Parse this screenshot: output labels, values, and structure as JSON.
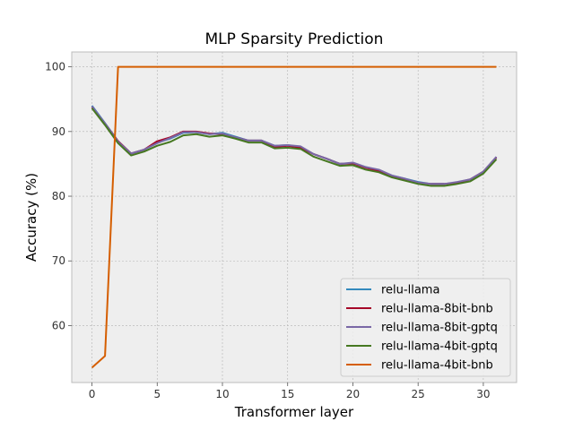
{
  "chart_data": {
    "type": "line",
    "title": "MLP Sparsity Prediction",
    "xlabel": "Transformer layer",
    "ylabel": "Accuracy (%)",
    "xlim": [
      -1.55,
      32.55
    ],
    "ylim": [
      51.2,
      102.3
    ],
    "xticks": [
      0,
      5,
      10,
      15,
      20,
      25,
      30
    ],
    "yticks": [
      60,
      70,
      80,
      90,
      100
    ],
    "grid": true,
    "legend_position": "lower-right",
    "x": [
      0,
      1,
      2,
      3,
      4,
      5,
      6,
      7,
      8,
      9,
      10,
      11,
      12,
      13,
      14,
      15,
      16,
      17,
      18,
      19,
      20,
      21,
      22,
      23,
      24,
      25,
      26,
      27,
      28,
      29,
      30,
      31
    ],
    "series": [
      {
        "name": "relu-llama",
        "color": "#348ABD",
        "values": [
          94.0,
          91.3,
          88.5,
          86.6,
          87.2,
          88.3,
          88.9,
          89.8,
          89.9,
          89.6,
          89.8,
          89.2,
          88.6,
          88.6,
          87.8,
          87.9,
          87.6,
          86.5,
          85.8,
          85.0,
          85.1,
          84.5,
          84.0,
          83.2,
          82.7,
          82.2,
          81.9,
          81.9,
          82.1,
          82.6,
          83.8,
          86.0
        ]
      },
      {
        "name": "relu-llama-8bit-bnb",
        "color": "#A60628",
        "values": [
          93.8,
          91.2,
          88.5,
          86.6,
          87.2,
          88.5,
          89.1,
          90.0,
          90.0,
          89.7,
          89.6,
          89.1,
          88.6,
          88.6,
          87.6,
          87.8,
          87.5,
          86.5,
          85.8,
          85.0,
          85.1,
          84.4,
          83.9,
          83.1,
          82.6,
          82.1,
          81.9,
          81.9,
          82.1,
          82.6,
          83.8,
          86.0
        ]
      },
      {
        "name": "relu-llama-8bit-gptq",
        "color": "#7A68A6",
        "values": [
          93.9,
          91.2,
          88.4,
          86.6,
          87.2,
          88.2,
          89.0,
          89.9,
          89.9,
          89.6,
          89.7,
          89.1,
          88.6,
          88.6,
          87.8,
          87.9,
          87.7,
          86.5,
          85.8,
          85.0,
          85.2,
          84.5,
          84.1,
          83.2,
          82.7,
          82.1,
          81.9,
          81.9,
          82.2,
          82.6,
          83.8,
          86.1
        ]
      },
      {
        "name": "relu-llama-4bit-gptq",
        "color": "#467821",
        "values": [
          93.6,
          91.0,
          88.2,
          86.3,
          86.9,
          87.8,
          88.4,
          89.4,
          89.6,
          89.2,
          89.4,
          88.9,
          88.3,
          88.3,
          87.4,
          87.5,
          87.3,
          86.1,
          85.4,
          84.7,
          84.8,
          84.1,
          83.7,
          82.9,
          82.4,
          81.9,
          81.6,
          81.6,
          81.9,
          82.3,
          83.5,
          85.7
        ]
      },
      {
        "name": "relu-llama-4bit-bnb",
        "color": "#D55E00",
        "values": [
          53.5,
          55.3,
          100,
          100,
          100,
          100,
          100,
          100,
          100,
          100,
          100,
          100,
          100,
          100,
          100,
          100,
          100,
          100,
          100,
          100,
          100,
          100,
          100,
          100,
          100,
          100,
          100,
          100,
          100,
          100,
          100,
          100
        ]
      }
    ]
  }
}
